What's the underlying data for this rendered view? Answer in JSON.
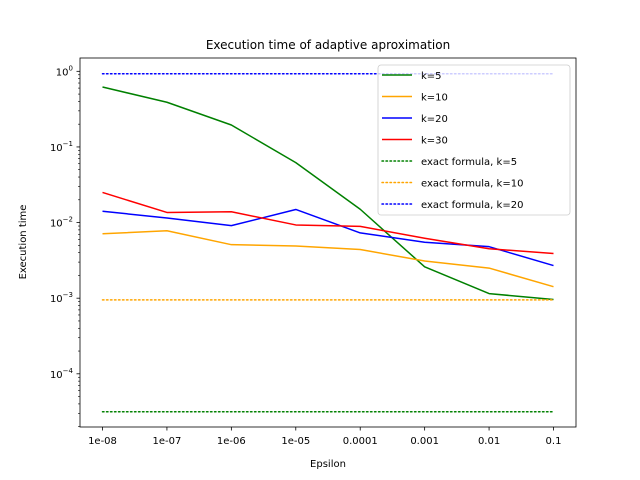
{
  "chart_data": {
    "type": "line",
    "title": "Execution time of adaptive aproximation",
    "xlabel": "Epsilon",
    "ylabel": "Execution time",
    "y_scale": "log",
    "ylim": [
      1.98e-05,
      1.5
    ],
    "categories": [
      "1e-08",
      "1e-07",
      "1e-06",
      "1e-05",
      "0.0001",
      "0.001",
      "0.01",
      "0.1"
    ],
    "y_ticks": [
      {
        "value": 0.0001,
        "base": "10",
        "exp": "−4"
      },
      {
        "value": 0.001,
        "base": "10",
        "exp": "−3"
      },
      {
        "value": 0.01,
        "base": "10",
        "exp": "−2"
      },
      {
        "value": 0.1,
        "base": "10",
        "exp": "−1"
      },
      {
        "value": 1,
        "base": "10",
        "exp": "0"
      }
    ],
    "grid": false,
    "legend_position": "top-right",
    "series": [
      {
        "name": "k=5",
        "color": "#008000",
        "style": "solid",
        "values": [
          0.62,
          0.39,
          0.195,
          0.062,
          0.015,
          0.0026,
          0.00115,
          0.00096
        ]
      },
      {
        "name": "k=10",
        "color": "#FFA500",
        "style": "solid",
        "values": [
          0.0071,
          0.0078,
          0.0051,
          0.0049,
          0.0044,
          0.0031,
          0.0025,
          0.00142
        ]
      },
      {
        "name": "k=20",
        "color": "#0000FF",
        "style": "solid",
        "values": [
          0.0141,
          0.0115,
          0.0091,
          0.0149,
          0.0073,
          0.0055,
          0.0048,
          0.0027
        ]
      },
      {
        "name": "k=30",
        "color": "#FF0000",
        "style": "solid",
        "values": [
          0.025,
          0.0136,
          0.0139,
          0.0093,
          0.0089,
          0.0062,
          0.0045,
          0.0039
        ]
      },
      {
        "name": "exact formula, k=5",
        "color": "#008000",
        "style": "dotted",
        "values": [
          3.15e-05,
          3.15e-05,
          3.15e-05,
          3.15e-05,
          3.15e-05,
          3.15e-05,
          3.15e-05,
          3.15e-05
        ]
      },
      {
        "name": "exact formula, k=10",
        "color": "#FFA500",
        "style": "dotted",
        "values": [
          0.00095,
          0.00095,
          0.00095,
          0.00095,
          0.00095,
          0.00095,
          0.00095,
          0.00095
        ]
      },
      {
        "name": "exact formula, k=20",
        "color": "#0000FF",
        "style": "dotted",
        "values": [
          0.93,
          0.93,
          0.93,
          0.93,
          0.93,
          0.93,
          0.93,
          0.93
        ]
      }
    ]
  }
}
